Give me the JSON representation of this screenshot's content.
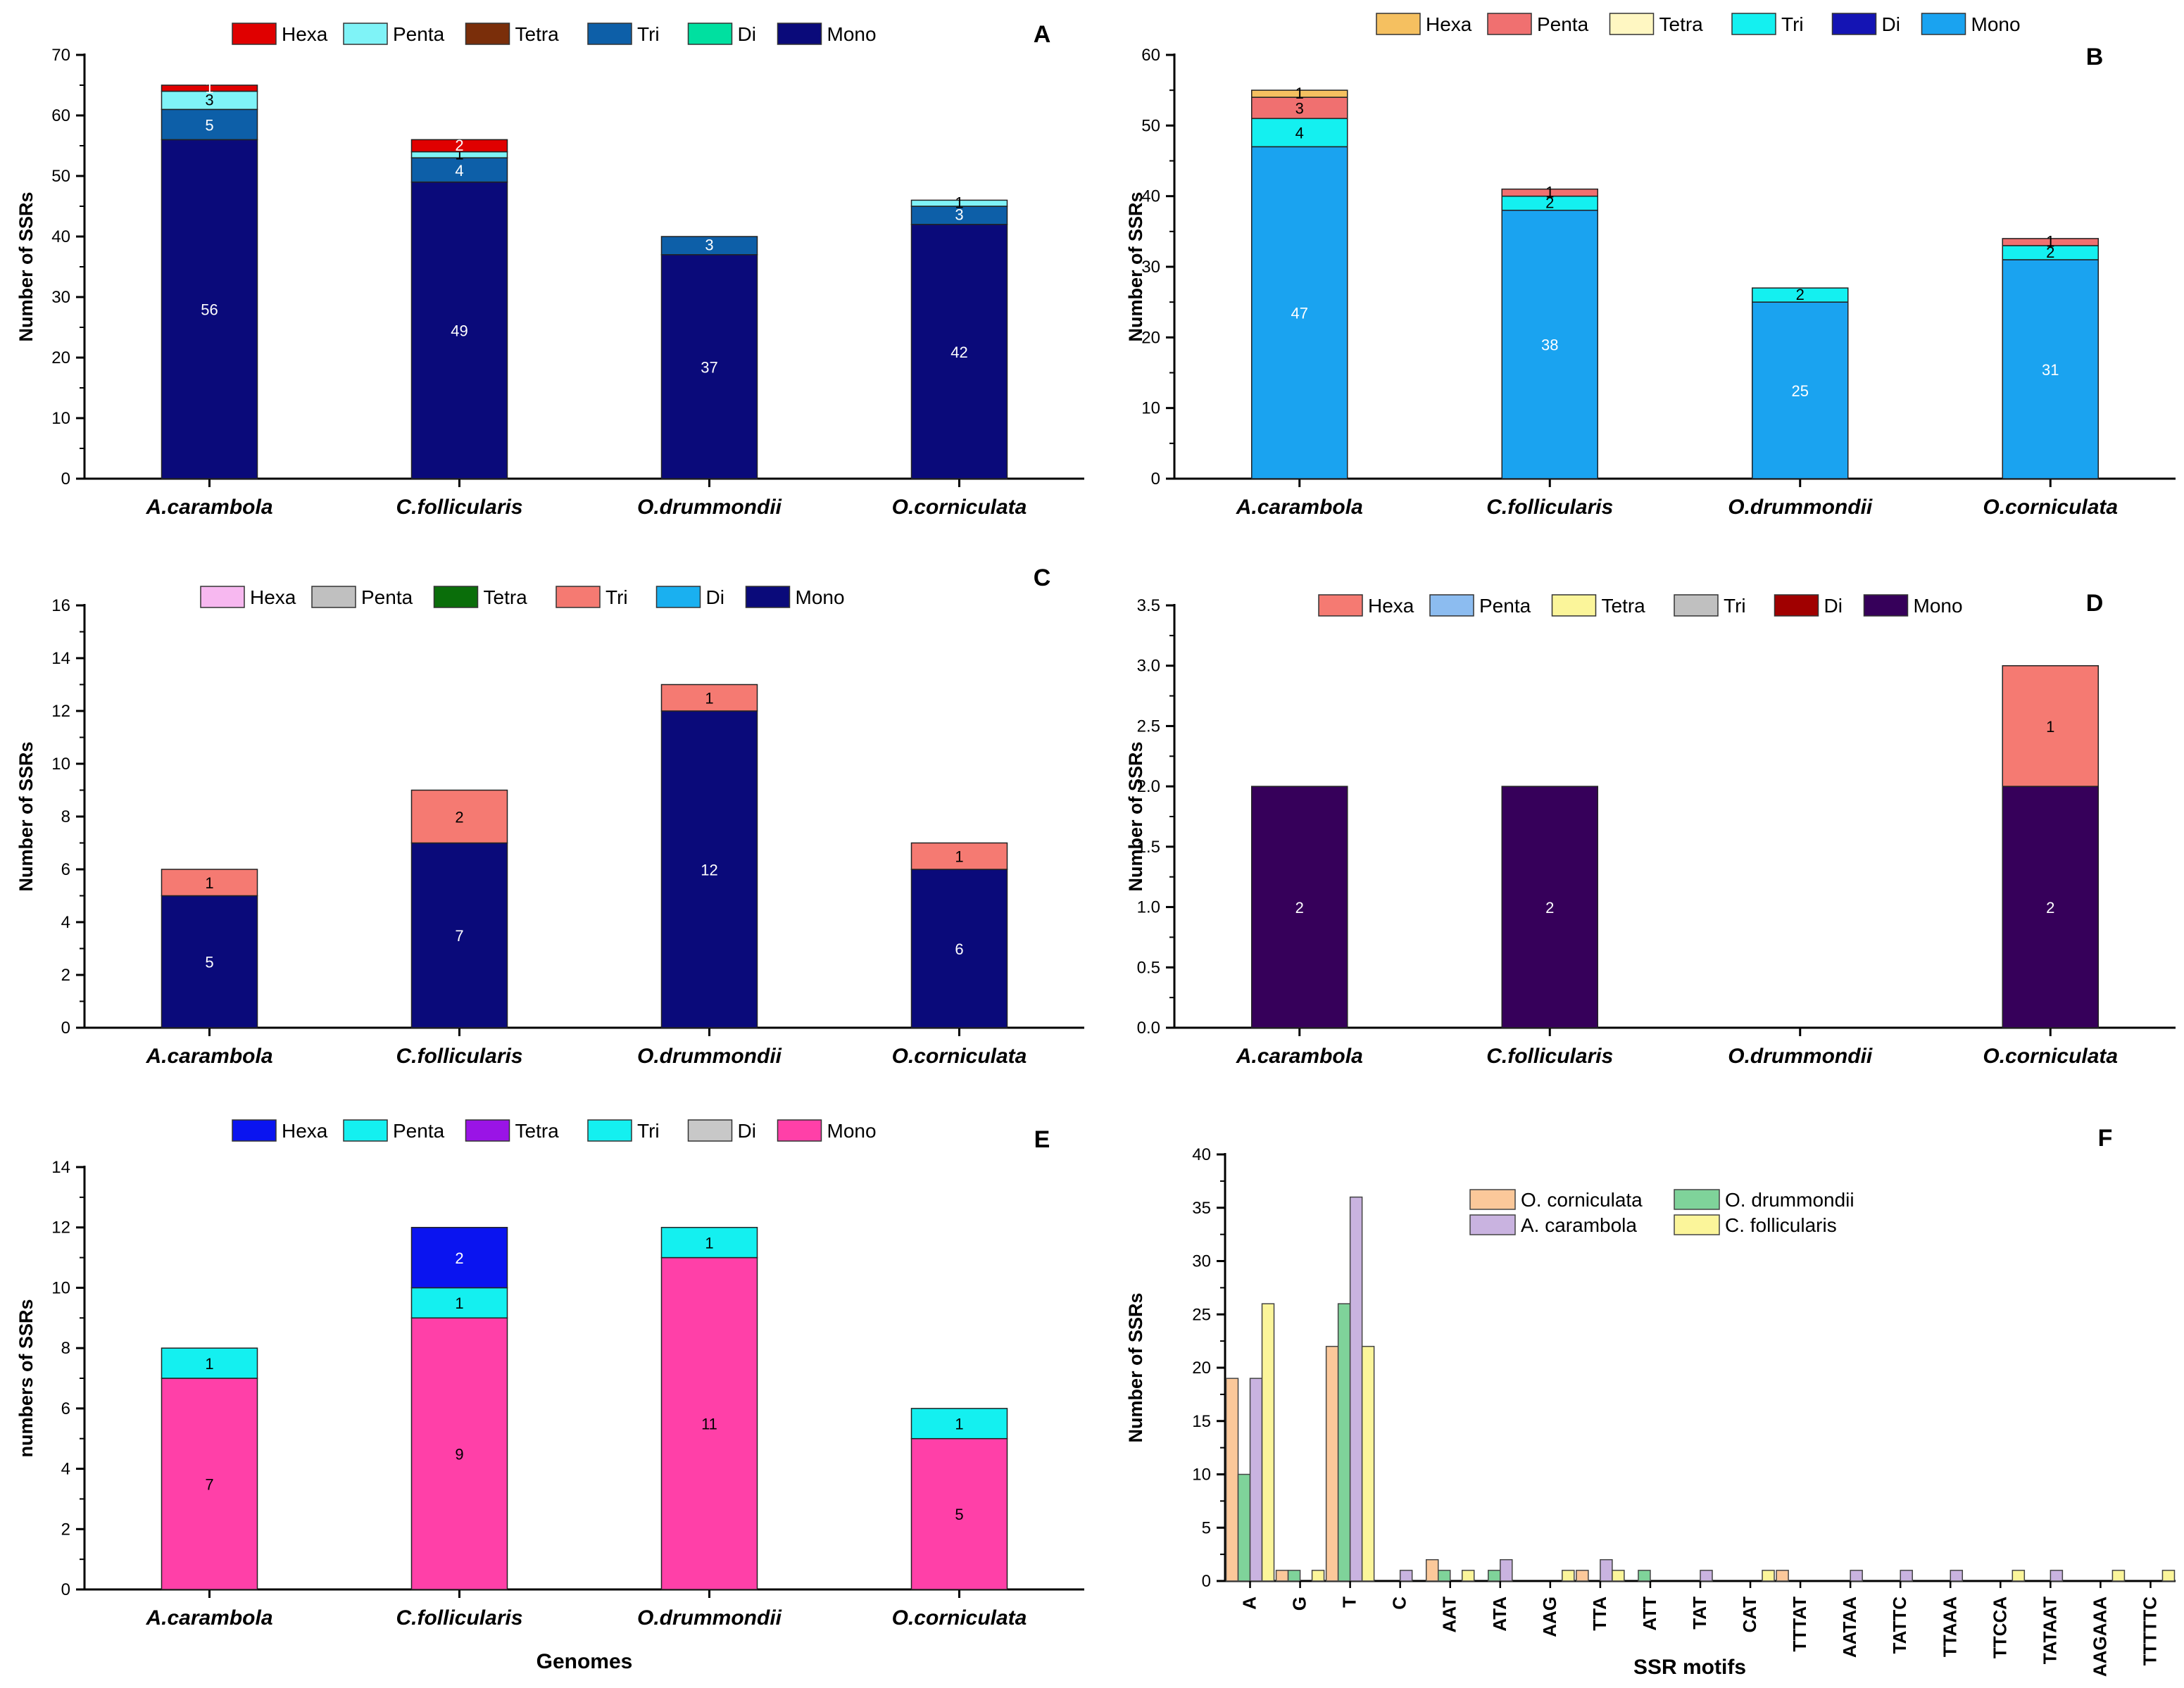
{
  "chart_data": [
    {
      "id": "A",
      "type": "bar",
      "stacked": true,
      "title": "A",
      "ylabel": "Number of SSRs",
      "xlabel": "",
      "ylim": [
        0,
        70
      ],
      "yticks": [
        0,
        10,
        20,
        30,
        40,
        50,
        60,
        70
      ],
      "categories": [
        "A.carambola",
        "C.follicularis",
        "O.drummondii",
        "O.corniculata"
      ],
      "legend": [
        "Hexa",
        "Penta",
        "Tetra",
        "Tri",
        "Di",
        "Mono"
      ],
      "series": [
        {
          "name": "Mono",
          "color": "#0a0a7a",
          "label_color": "#ffffff",
          "values": [
            56,
            49,
            37,
            42
          ]
        },
        {
          "name": "Di",
          "color": "#00e0a0",
          "label_color": "#ffffff",
          "values": [
            0,
            0,
            0,
            0
          ]
        },
        {
          "name": "Tri",
          "color": "#0d5fa8",
          "label_color": "#ffffff",
          "values": [
            5,
            4,
            3,
            3
          ]
        },
        {
          "name": "Tetra",
          "color": "#7a2e0a",
          "label_color": "#ffffff",
          "values": [
            0,
            0,
            0,
            0
          ]
        },
        {
          "name": "Penta",
          "color": "#7ff3f7",
          "label_color": "#000000",
          "values": [
            3,
            1,
            0,
            1
          ]
        },
        {
          "name": "Hexa",
          "color": "#e00000",
          "label_color": "#ffffff",
          "values": [
            1,
            2,
            0,
            0
          ]
        }
      ]
    },
    {
      "id": "B",
      "type": "bar",
      "stacked": true,
      "title": "B",
      "ylabel": "Number of SSRs",
      "xlabel": "",
      "ylim": [
        0,
        60
      ],
      "yticks": [
        0,
        10,
        20,
        30,
        40,
        50,
        60
      ],
      "categories": [
        "A.carambola",
        "C.follicularis",
        "O.drummondii",
        "O.corniculata"
      ],
      "legend": [
        "Hexa",
        "Penta",
        "Tetra",
        "Tri",
        "Di",
        "Mono"
      ],
      "series": [
        {
          "name": "Mono",
          "color": "#1aa3f0",
          "label_color": "#ffffff",
          "values": [
            47,
            38,
            25,
            31
          ]
        },
        {
          "name": "Di",
          "color": "#1414b4",
          "label_color": "#ffffff",
          "values": [
            0,
            0,
            0,
            0
          ]
        },
        {
          "name": "Tri",
          "color": "#14f0f0",
          "label_color": "#000000",
          "values": [
            4,
            2,
            2,
            2
          ]
        },
        {
          "name": "Tetra",
          "color": "#fff7c2",
          "label_color": "#000000",
          "values": [
            0,
            0,
            0,
            0
          ]
        },
        {
          "name": "Penta",
          "color": "#f07070",
          "label_color": "#000000",
          "values": [
            3,
            1,
            0,
            1
          ]
        },
        {
          "name": "Hexa",
          "color": "#f5c060",
          "label_color": "#000000",
          "values": [
            1,
            0,
            0,
            0
          ]
        }
      ]
    },
    {
      "id": "C",
      "type": "bar",
      "stacked": true,
      "title": "C",
      "ylabel": "Number of SSRs",
      "xlabel": "",
      "ylim": [
        0,
        16
      ],
      "yticks": [
        0,
        2,
        4,
        6,
        8,
        10,
        12,
        14,
        16
      ],
      "categories": [
        "A.carambola",
        "C.follicularis",
        "O.drummondii",
        "O.corniculata"
      ],
      "legend": [
        "Hexa",
        "Penta",
        "Tetra",
        "Tri",
        "Di",
        "Mono"
      ],
      "series": [
        {
          "name": "Mono",
          "color": "#0a0a7a",
          "label_color": "#ffffff",
          "values": [
            5,
            7,
            12,
            6
          ]
        },
        {
          "name": "Di",
          "color": "#1ab0f0",
          "label_color": "#ffffff",
          "values": [
            0,
            0,
            0,
            0
          ]
        },
        {
          "name": "Tri",
          "color": "#f57a72",
          "label_color": "#000000",
          "values": [
            1,
            2,
            1,
            1
          ]
        },
        {
          "name": "Tetra",
          "color": "#0a6e0a",
          "label_color": "#ffffff",
          "values": [
            0,
            0,
            0,
            0
          ]
        },
        {
          "name": "Penta",
          "color": "#c0c0c0",
          "label_color": "#000000",
          "values": [
            0,
            0,
            0,
            0
          ]
        },
        {
          "name": "Hexa",
          "color": "#f7b8f0",
          "label_color": "#000000",
          "values": [
            0,
            0,
            0,
            0
          ]
        }
      ]
    },
    {
      "id": "D",
      "type": "bar",
      "stacked": true,
      "title": "D",
      "ylabel": "Number of SSRs",
      "xlabel": "",
      "ylim": [
        0,
        3.5
      ],
      "yticks": [
        "0.0",
        "0.5",
        "1.0",
        "1.5",
        "2.0",
        "2.5",
        "3.0",
        "3.5"
      ],
      "categories": [
        "A.carambola",
        "C.follicularis",
        "O.drummondii",
        "O.corniculata"
      ],
      "legend": [
        "Hexa",
        "Penta",
        "Tetra",
        "Tri",
        "Di",
        "Mono"
      ],
      "series": [
        {
          "name": "Mono",
          "color": "#36005a",
          "label_color": "#ffffff",
          "values": [
            2,
            2,
            0,
            2
          ]
        },
        {
          "name": "Di",
          "color": "#a00000",
          "label_color": "#ffffff",
          "values": [
            0,
            0,
            0,
            0
          ]
        },
        {
          "name": "Tri",
          "color": "#c0c0c0",
          "label_color": "#000000",
          "values": [
            0,
            0,
            0,
            0
          ]
        },
        {
          "name": "Tetra",
          "color": "#fbf59a",
          "label_color": "#000000",
          "values": [
            0,
            0,
            0,
            0
          ]
        },
        {
          "name": "Penta",
          "color": "#8cbcf0",
          "label_color": "#000000",
          "values": [
            0,
            0,
            0,
            0
          ]
        },
        {
          "name": "Hexa",
          "color": "#f57a72",
          "label_color": "#000000",
          "values": [
            0,
            0,
            0,
            1
          ]
        }
      ]
    },
    {
      "id": "E",
      "type": "bar",
      "stacked": true,
      "title": "E",
      "ylabel": "numbers of SSRs",
      "xlabel": "Genomes",
      "ylim": [
        0,
        14
      ],
      "yticks": [
        0,
        2,
        4,
        6,
        8,
        10,
        12,
        14
      ],
      "categories": [
        "A.carambola",
        "C.follicularis",
        "O.drummondii",
        "O.corniculata"
      ],
      "legend": [
        "Hexa",
        "Penta",
        "Tetra",
        "Tri",
        "Di",
        "Mono"
      ],
      "series": [
        {
          "name": "Mono",
          "color": "#ff40a8",
          "label_color": "#000000",
          "values": [
            7,
            9,
            11,
            5
          ]
        },
        {
          "name": "Di",
          "color": "#c8c8c8",
          "label_color": "#000000",
          "values": [
            0,
            0,
            0,
            0
          ]
        },
        {
          "name": "Tri",
          "color": "#14f0f0",
          "label_color": "#000000",
          "values": [
            1,
            1,
            1,
            1
          ]
        },
        {
          "name": "Tetra",
          "color": "#9a14e6",
          "label_color": "#ffffff",
          "values": [
            0,
            0,
            0,
            0
          ]
        },
        {
          "name": "Penta",
          "color": "#14f0f0",
          "label_color": "#000000",
          "values": [
            0,
            0,
            0,
            0
          ]
        },
        {
          "name": "Hexa",
          "color": "#0a14f0",
          "label_color": "#ffffff",
          "values": [
            0,
            2,
            0,
            0
          ]
        }
      ]
    },
    {
      "id": "F",
      "type": "bar",
      "stacked": false,
      "title": "F",
      "ylabel": "Number of SSRs",
      "xlabel": "SSR motifs",
      "ylim": [
        0,
        40
      ],
      "yticks": [
        0,
        5,
        10,
        15,
        20,
        25,
        30,
        35,
        40
      ],
      "categories": [
        "A",
        "G",
        "T",
        "C",
        "AAT",
        "ATA",
        "AAG",
        "TTA",
        "ATT",
        "TAT",
        "CAT",
        "TTTAT",
        "AATAA",
        "TATTC",
        "TTAAA",
        "TTCCA",
        "TATAAT",
        "AAGAAA",
        "TTTTTC"
      ],
      "legend_layout": [
        [
          "O. corniculata",
          "O. drummondii"
        ],
        [
          "A. carambola",
          "C. follicularis"
        ]
      ],
      "series": [
        {
          "name": "O. corniculata",
          "color": "#fbc89a",
          "values": [
            19,
            1,
            22,
            0,
            2,
            0,
            0,
            1,
            0,
            0,
            0,
            1,
            0,
            0,
            0,
            0,
            0,
            0,
            0
          ]
        },
        {
          "name": "O. drummondii",
          "color": "#7fd39a",
          "values": [
            10,
            1,
            26,
            0,
            1,
            1,
            0,
            0,
            1,
            0,
            0,
            0,
            0,
            0,
            0,
            0,
            0,
            0,
            0
          ]
        },
        {
          "name": "A. carambola",
          "color": "#c9b3e0",
          "values": [
            19,
            0,
            36,
            1,
            0,
            2,
            0,
            2,
            0,
            1,
            0,
            0,
            1,
            1,
            1,
            0,
            1,
            0,
            0
          ]
        },
        {
          "name": "C. follicularis",
          "color": "#fbf59a",
          "values": [
            26,
            1,
            22,
            0,
            1,
            0,
            1,
            1,
            0,
            0,
            1,
            0,
            0,
            0,
            0,
            1,
            0,
            1,
            1
          ]
        }
      ]
    }
  ]
}
